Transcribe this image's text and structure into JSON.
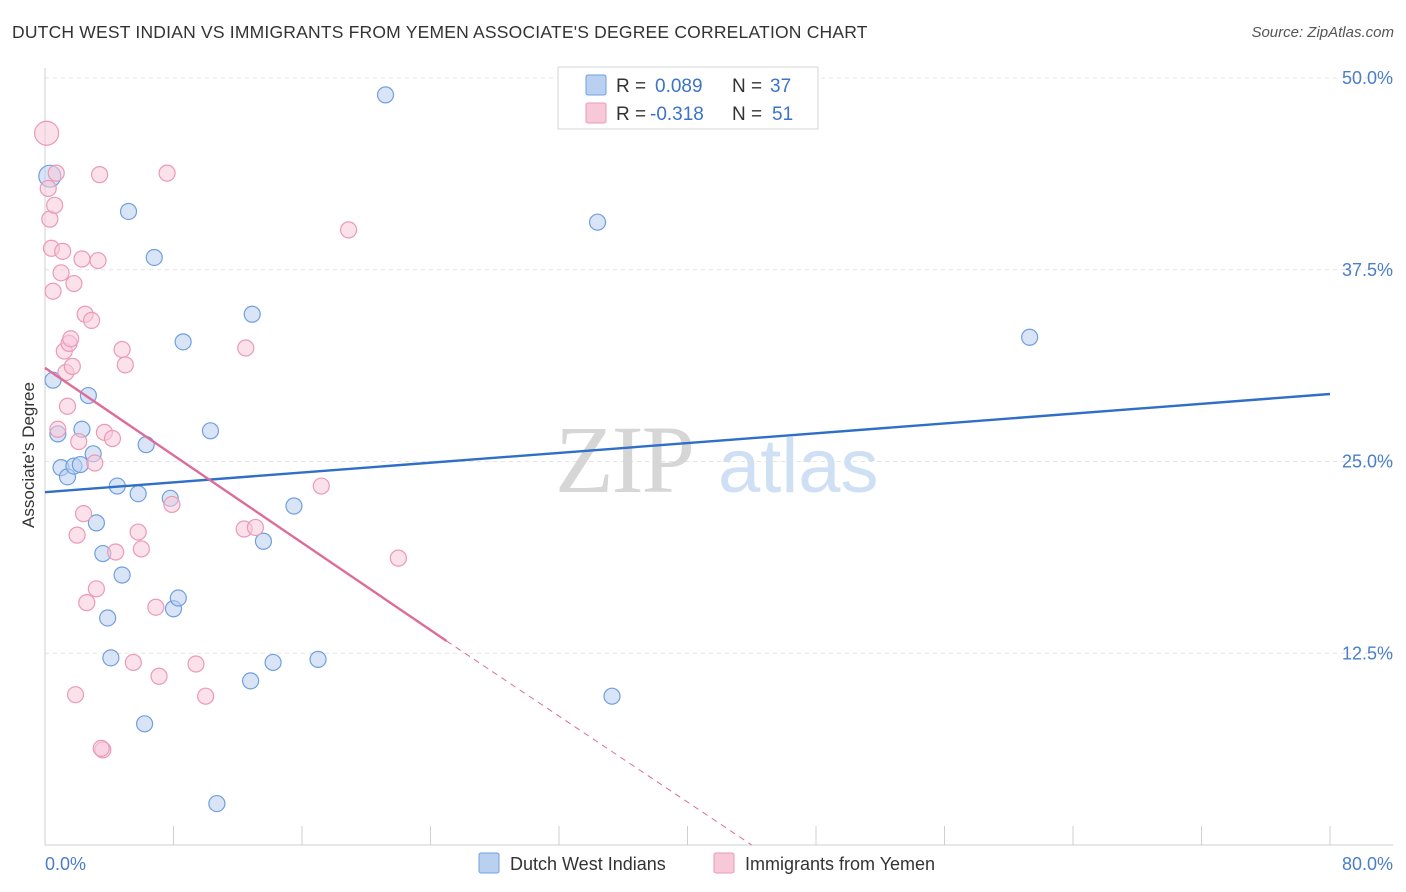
{
  "title": "DUTCH WEST INDIAN VS IMMIGRANTS FROM YEMEN ASSOCIATE'S DEGREE CORRELATION CHART",
  "source": "Source: ZipAtlas.com",
  "watermark": {
    "zip": "ZIP",
    "atlas": "atlas"
  },
  "chart_data": {
    "type": "scatter",
    "xlabel": "",
    "ylabel": "Associate's Degree",
    "xlim": [
      0,
      80
    ],
    "ylim": [
      0,
      50
    ],
    "x_tick_labels": [
      "0.0%",
      "80.0%"
    ],
    "y_ticks": [
      12.5,
      25.0,
      37.5,
      50.0
    ],
    "y_tick_labels": [
      "12.5%",
      "25.0%",
      "37.5%",
      "50.0%"
    ],
    "grid": true,
    "legend": {
      "position": "top-center",
      "entries": [
        {
          "r_label": "R =",
          "r_value": "0.089",
          "n_label": "N =",
          "n_value": "37"
        },
        {
          "r_label": "R =",
          "r_value": "-0.318",
          "n_label": "N =",
          "n_value": "51"
        }
      ]
    },
    "series": [
      {
        "name": "Dutch West Indians",
        "color": "#6f9fe0",
        "fill": "#b9d0f1",
        "trend_color": "#2f6fc6",
        "trend": {
          "x0": 0,
          "y0": 23.0,
          "x1": 80,
          "y1": 29.4
        },
        "points": [
          [
            0.3,
            43.6
          ],
          [
            0.5,
            30.3
          ],
          [
            0.8,
            26.8
          ],
          [
            1.0,
            24.6
          ],
          [
            1.4,
            24.0
          ],
          [
            1.8,
            24.7
          ],
          [
            2.2,
            24.8
          ],
          [
            2.3,
            27.1
          ],
          [
            2.7,
            29.3
          ],
          [
            3.0,
            25.5
          ],
          [
            3.2,
            21.0
          ],
          [
            3.6,
            19.0
          ],
          [
            3.9,
            14.8
          ],
          [
            4.1,
            12.2
          ],
          [
            4.5,
            23.4
          ],
          [
            4.8,
            17.6
          ],
          [
            5.2,
            41.3
          ],
          [
            5.8,
            22.9
          ],
          [
            6.2,
            7.9
          ],
          [
            6.3,
            26.1
          ],
          [
            6.8,
            38.3
          ],
          [
            7.8,
            22.6
          ],
          [
            8.0,
            15.4
          ],
          [
            8.3,
            16.1
          ],
          [
            8.6,
            32.8
          ],
          [
            10.3,
            27.0
          ],
          [
            10.7,
            2.7
          ],
          [
            12.8,
            10.7
          ],
          [
            12.9,
            34.6
          ],
          [
            13.6,
            19.8
          ],
          [
            14.2,
            11.9
          ],
          [
            15.5,
            22.1
          ],
          [
            17.0,
            12.1
          ],
          [
            21.2,
            48.9
          ],
          [
            34.4,
            40.6
          ],
          [
            35.3,
            9.7
          ],
          [
            61.3,
            33.1
          ]
        ]
      },
      {
        "name": "Immigrants from Yemen",
        "color": "#eb9ab5",
        "fill": "#f7c9d8",
        "trend_color": "#dc6d98",
        "trend": {
          "x0": 0,
          "y0": 31.1,
          "x1": 25.0,
          "y1": 13.3
        },
        "trend_dashed_to": {
          "x": 44.0,
          "y": 0
        },
        "points": [
          [
            0.1,
            46.4
          ],
          [
            0.2,
            42.8
          ],
          [
            0.3,
            40.8
          ],
          [
            0.4,
            38.9
          ],
          [
            0.5,
            36.1
          ],
          [
            0.6,
            41.7
          ],
          [
            0.7,
            43.8
          ],
          [
            0.8,
            27.1
          ],
          [
            1.0,
            37.3
          ],
          [
            1.1,
            38.7
          ],
          [
            1.2,
            32.2
          ],
          [
            1.3,
            30.8
          ],
          [
            1.4,
            28.6
          ],
          [
            1.5,
            32.7
          ],
          [
            1.6,
            33.0
          ],
          [
            1.7,
            31.2
          ],
          [
            1.8,
            36.6
          ],
          [
            1.9,
            9.8
          ],
          [
            2.0,
            20.2
          ],
          [
            2.1,
            26.3
          ],
          [
            2.3,
            38.2
          ],
          [
            2.4,
            21.6
          ],
          [
            2.5,
            34.6
          ],
          [
            2.6,
            15.8
          ],
          [
            2.9,
            34.2
          ],
          [
            3.1,
            24.9
          ],
          [
            3.2,
            16.7
          ],
          [
            3.3,
            38.1
          ],
          [
            3.4,
            43.7
          ],
          [
            3.6,
            6.2
          ],
          [
            3.7,
            26.9
          ],
          [
            4.4,
            19.1
          ],
          [
            4.8,
            32.3
          ],
          [
            5.0,
            31.3
          ],
          [
            5.5,
            11.9
          ],
          [
            5.8,
            20.4
          ],
          [
            6.0,
            19.3
          ],
          [
            6.9,
            15.5
          ],
          [
            7.1,
            11.0
          ],
          [
            7.6,
            43.8
          ],
          [
            7.9,
            22.2
          ],
          [
            9.4,
            11.8
          ],
          [
            10.0,
            9.7
          ],
          [
            12.4,
            20.6
          ],
          [
            12.5,
            32.4
          ],
          [
            13.1,
            20.7
          ],
          [
            17.2,
            23.4
          ],
          [
            18.9,
            40.1
          ],
          [
            22.0,
            18.7
          ],
          [
            3.5,
            6.3
          ],
          [
            4.2,
            26.5
          ]
        ]
      }
    ]
  },
  "bottom_legend": [
    "Dutch West Indians",
    "Immigrants from Yemen"
  ]
}
